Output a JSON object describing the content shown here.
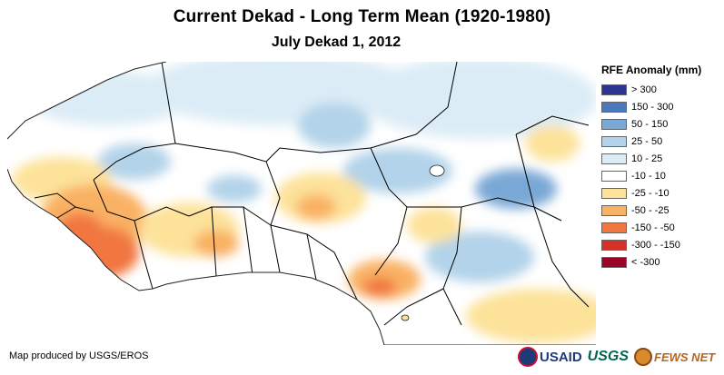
{
  "title": "Current Dekad - Long Term Mean (1920-1980)",
  "subtitle": "July Dekad 1, 2012",
  "legend": {
    "title": "RFE Anomaly (mm)",
    "items": [
      {
        "label": "> 300",
        "color": "#2b3590"
      },
      {
        "label": "150 - 300",
        "color": "#4a78bf"
      },
      {
        "label": "50 - 150",
        "color": "#79a8d6"
      },
      {
        "label": "25 - 50",
        "color": "#b2d3e9"
      },
      {
        "label": "10 - 25",
        "color": "#dcecf6"
      },
      {
        "label": "-10 - 10",
        "color": "#ffffff"
      },
      {
        "label": "-25 - -10",
        "color": "#fde29a"
      },
      {
        "label": "-50 - -25",
        "color": "#f9b164"
      },
      {
        "label": "-150 - -50",
        "color": "#f1763f"
      },
      {
        "label": "-300 - -150",
        "color": "#d73127"
      },
      {
        "label": "< -300",
        "color": "#9c0428"
      }
    ]
  },
  "credit": "Map produced by USGS/EROS",
  "logos": {
    "usaid": "USAID",
    "usgs": "USGS",
    "fews": "FEWS NET"
  }
}
